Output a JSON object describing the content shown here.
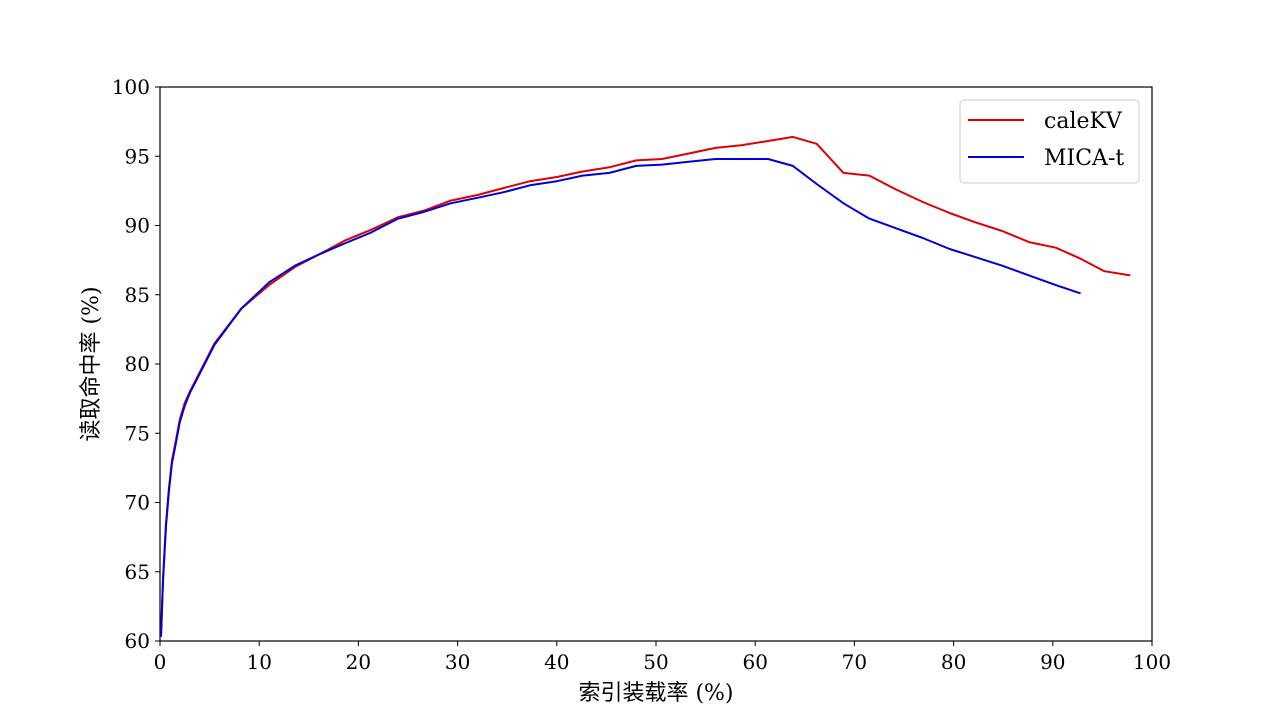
{
  "chart_data": {
    "type": "line",
    "xlabel": "索引装载率 (%)",
    "ylabel": "读取命中率 (%)",
    "xlim": [
      0,
      100
    ],
    "ylim": [
      60,
      100
    ],
    "xticks": [
      0,
      10,
      20,
      30,
      40,
      50,
      60,
      70,
      80,
      90,
      100
    ],
    "yticks": [
      60,
      65,
      70,
      75,
      80,
      85,
      90,
      95,
      100
    ],
    "grid": false,
    "legend_position": "top-right",
    "series": [
      {
        "name": "caleKV",
        "color": "#e00000",
        "x": [
          0.1,
          0.3,
          0.6,
          0.9,
          1.2,
          1.6,
          2.0,
          2.5,
          3.0,
          5.5,
          8.2,
          11.0,
          13.6,
          16.0,
          18.6,
          21.3,
          24.0,
          26.7,
          29.3,
          32.0,
          34.6,
          37.3,
          40.0,
          42.6,
          45.3,
          48.0,
          50.6,
          53.3,
          56.0,
          58.6,
          61.3,
          63.8,
          66.2,
          68.9,
          71.5,
          74.2,
          76.9,
          79.6,
          82.3,
          84.9,
          87.6,
          90.3,
          92.8,
          95.2,
          97.8
        ],
        "y": [
          60.5,
          64.5,
          68.5,
          71.0,
          73.0,
          74.5,
          76.0,
          77.2,
          78.0,
          81.5,
          84.0,
          85.7,
          87.0,
          87.9,
          88.9,
          89.7,
          90.6,
          91.1,
          91.8,
          92.2,
          92.7,
          93.2,
          93.5,
          93.9,
          94.2,
          94.7,
          94.8,
          95.2,
          95.6,
          95.8,
          96.1,
          96.4,
          95.9,
          93.8,
          93.6,
          92.6,
          91.7,
          90.9,
          90.2,
          89.6,
          88.8,
          88.4,
          87.6,
          86.7,
          86.4
        ]
      },
      {
        "name": "MICA-t",
        "color": "#0000d8",
        "x": [
          0.1,
          0.3,
          0.6,
          0.9,
          1.2,
          1.6,
          2.0,
          2.5,
          3.0,
          5.5,
          8.2,
          11.0,
          13.6,
          16.0,
          18.6,
          21.3,
          24.0,
          26.7,
          29.3,
          32.0,
          34.6,
          37.3,
          40.0,
          42.6,
          45.3,
          48.0,
          50.6,
          53.3,
          56.0,
          58.6,
          61.3,
          63.8,
          66.2,
          68.9,
          71.5,
          74.2,
          76.9,
          79.6,
          82.3,
          84.9,
          87.6,
          90.3,
          92.8
        ],
        "y": [
          60.3,
          64.3,
          68.3,
          70.8,
          72.8,
          74.3,
          75.8,
          77.0,
          77.9,
          81.4,
          84.0,
          85.9,
          87.1,
          87.9,
          88.7,
          89.5,
          90.5,
          91.0,
          91.6,
          92.0,
          92.4,
          92.9,
          93.2,
          93.6,
          93.8,
          94.3,
          94.4,
          94.6,
          94.8,
          94.8,
          94.8,
          94.3,
          93.0,
          91.6,
          90.5,
          89.8,
          89.1,
          88.3,
          87.7,
          87.1,
          86.4,
          85.7,
          85.1
        ]
      }
    ]
  }
}
